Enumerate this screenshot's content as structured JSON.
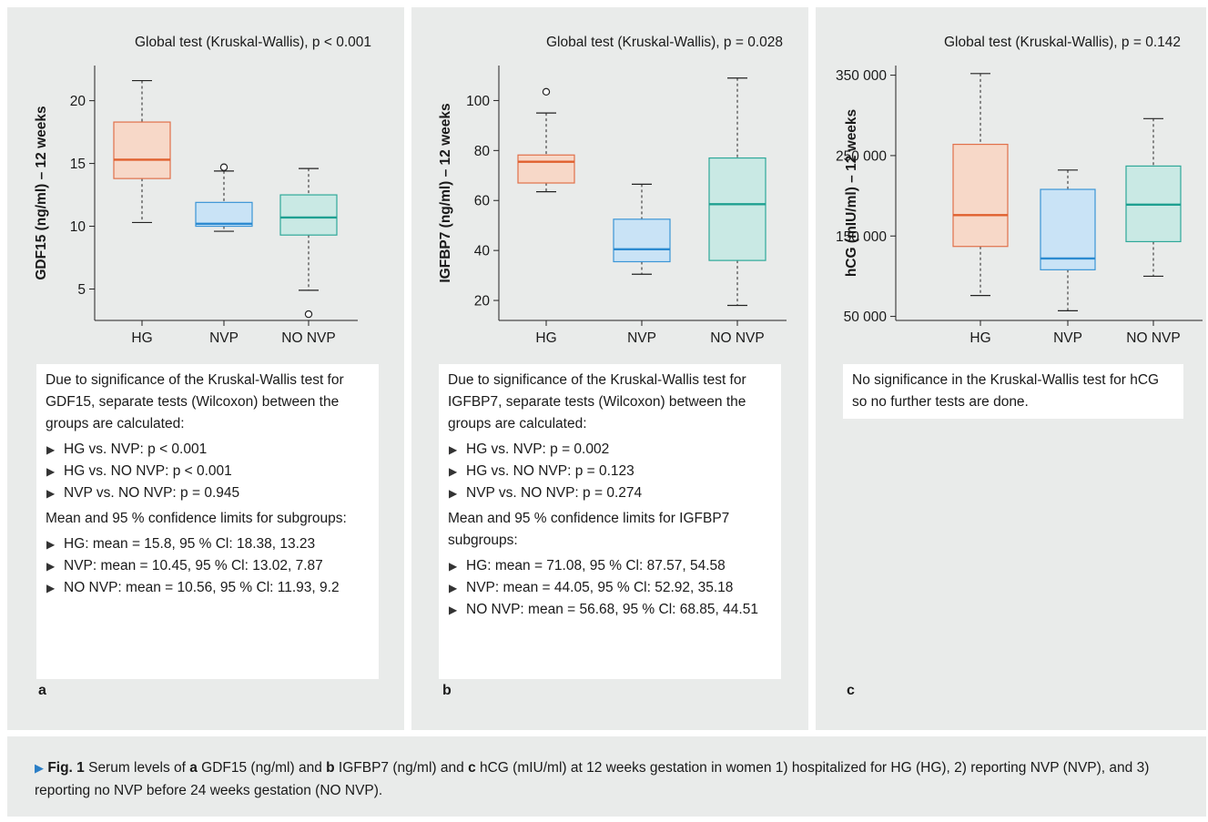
{
  "panels": [
    {
      "title": "Global test (Kruskal-Wallis), p < 0.001",
      "ylabel": "GDF15 (ng/ml) – 12 weeks",
      "letter": "a",
      "note_intro": "Due to significance of the Kruskal-Wallis test for GDF15, separate tests (Wilcoxon) between the groups are calculated:",
      "tests": [
        "HG vs. NVP: p < 0.001",
        "HG vs. NO NVP: p < 0.001",
        "NVP vs. NO NVP: p = 0.945"
      ],
      "ci_intro": "Mean and 95 % confidence limits for subgroups:",
      "ci": [
        "HG: mean = 15.8, 95 % Cl: 18.38, 13.23",
        "NVP: mean = 10.45, 95 % Cl: 13.02, 7.87",
        "NO NVP: mean = 10.56, 95 % Cl: 11.93, 9.2"
      ]
    },
    {
      "title": "Global test (Kruskal-Wallis), p = 0.028",
      "ylabel": "IGFBP7 (ng/ml) – 12 weeks",
      "letter": "b",
      "note_intro": "Due to significance of the Kruskal-Wallis test for IGFBP7, separate tests (Wilcoxon) between the groups are calculated:",
      "tests": [
        "HG vs. NVP: p = 0.002",
        "HG vs. NO NVP: p = 0.123",
        "NVP vs. NO NVP: p = 0.274"
      ],
      "ci_intro": "Mean and 95 % confidence limits for IGFBP7 subgroups:",
      "ci": [
        "HG: mean = 71.08, 95 % Cl: 87.57, 54.58",
        "NVP: mean = 44.05, 95 % Cl: 52.92, 35.18",
        "NO NVP: mean = 56.68, 95 % Cl: 68.85, 44.51"
      ]
    },
    {
      "title": "Global test (Kruskal-Wallis), p = 0.142",
      "ylabel": "hCG (mIU/ml) – 12 weeks",
      "letter": "c",
      "note_intro": "No significance in the Kruskal-Wallis test for hCG so no further tests are done."
    }
  ],
  "caption": {
    "fig": "Fig. 1",
    "text_1": " Serum levels of ",
    "a": "a",
    "text_2": " GDF15 (ng/ml) and ",
    "b": "b",
    "text_3": " IGFBP7 (ng/ml) and ",
    "c": "c",
    "text_4": " hCG (mIU/ml) at 12 weeks gestation in women 1) hospitalized for HG (HG), 2) reporting NVP (NVP), and 3) reporting no NVP before 24 weeks gestation (NO NVP)."
  },
  "colors": {
    "HG": {
      "fill": "#f7d8c8",
      "stroke": "#e0704a",
      "median": "#e0602e"
    },
    "NVP": {
      "fill": "#c9e3f6",
      "stroke": "#3b95d6",
      "median": "#2b8ad0"
    },
    "NO NVP": {
      "fill": "#c9e9e4",
      "stroke": "#2fa899",
      "median": "#1ea091"
    }
  },
  "chart_data": [
    {
      "type": "boxplot",
      "title": "Global test (Kruskal-Wallis), p < 0.001",
      "ylabel": "GDF15 (ng/ml) – 12 weeks",
      "categories": [
        "HG",
        "NVP",
        "NO NVP"
      ],
      "yticks": [
        5,
        10,
        15,
        20
      ],
      "ylim": [
        2.5,
        22.8
      ],
      "boxes": [
        {
          "category": "HG",
          "whisker_low": 10.3,
          "q1": 13.8,
          "median": 15.3,
          "q3": 18.3,
          "whisker_high": 21.6,
          "outliers": []
        },
        {
          "category": "NVP",
          "whisker_low": 9.6,
          "q1": 10.0,
          "median": 10.2,
          "q3": 11.9,
          "whisker_high": 14.4,
          "outliers": [
            14.7
          ]
        },
        {
          "category": "NO NVP",
          "whisker_low": 4.9,
          "q1": 9.3,
          "median": 10.7,
          "q3": 12.5,
          "whisker_high": 14.6,
          "outliers": [
            3.0
          ]
        }
      ]
    },
    {
      "type": "boxplot",
      "title": "Global test (Kruskal-Wallis), p = 0.028",
      "ylabel": "IGFBP7 (ng/ml) – 12 weeks",
      "categories": [
        "HG",
        "NVP",
        "NO NVP"
      ],
      "yticks": [
        20,
        40,
        60,
        80,
        100
      ],
      "ylim": [
        12,
        114
      ],
      "boxes": [
        {
          "category": "HG",
          "whisker_low": 63.5,
          "q1": 67.0,
          "median": 75.5,
          "q3": 78.2,
          "whisker_high": 95.0,
          "outliers": [
            103.5
          ]
        },
        {
          "category": "NVP",
          "whisker_low": 30.5,
          "q1": 35.5,
          "median": 40.5,
          "q3": 52.5,
          "whisker_high": 66.5,
          "outliers": []
        },
        {
          "category": "NO NVP",
          "whisker_low": 18.0,
          "q1": 36.0,
          "median": 58.5,
          "q3": 77.0,
          "whisker_high": 109.0,
          "outliers": []
        }
      ]
    },
    {
      "type": "boxplot",
      "title": "Global test (Kruskal-Wallis), p = 0.142",
      "ylabel": "hCG (mIU/ml) – 12 weeks",
      "categories": [
        "HG",
        "NVP",
        "NO NVP"
      ],
      "yticks": [
        50000,
        150000,
        250000,
        350000
      ],
      "ytick_labels": [
        "50 000",
        "150 000",
        "250 000",
        "350 000"
      ],
      "ylim": [
        45000,
        362000
      ],
      "boxes": [
        {
          "category": "HG",
          "whisker_low": 76000,
          "q1": 137000,
          "median": 176000,
          "q3": 264000,
          "whisker_high": 352000,
          "outliers": []
        },
        {
          "category": "NVP",
          "whisker_low": 57000,
          "q1": 108000,
          "median": 122000,
          "q3": 208000,
          "whisker_high": 232000,
          "outliers": []
        },
        {
          "category": "NO NVP",
          "whisker_low": 100000,
          "q1": 143000,
          "median": 189000,
          "q3": 237000,
          "whisker_high": 296000,
          "outliers": []
        }
      ]
    }
  ]
}
